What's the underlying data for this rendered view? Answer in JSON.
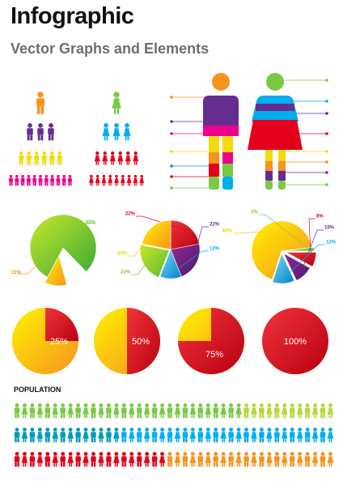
{
  "header": {
    "title": "Infographic",
    "subtitle": "Vector Graphs and Elements"
  },
  "colors": {
    "green": "#7ac943",
    "lime": "#b5d936",
    "yellow": "#f5d90a",
    "orange": "#f7931e",
    "red": "#e3001b",
    "pink": "#ec008c",
    "purple": "#662d91",
    "blue": "#00aeef",
    "teal": "#009bb8"
  },
  "chart_data": [
    {
      "type": "pie",
      "values": [
        68,
        22
      ],
      "labels": [
        "68%",
        "22%"
      ],
      "colors": [
        "#7ac943",
        "#f7d000"
      ]
    },
    {
      "type": "pie",
      "values": [
        22,
        22,
        12,
        22,
        22
      ],
      "labels": [
        "22%",
        "22%",
        "12%",
        "22%",
        "22%"
      ],
      "colors": [
        "#e3001b",
        "#662d91",
        "#00aeef",
        "#7ac943",
        "#f7d000"
      ]
    },
    {
      "type": "pie",
      "values": [
        68,
        2,
        8,
        10,
        12
      ],
      "labels": [
        "68%",
        "2%",
        "8%",
        "10%",
        "12%"
      ],
      "colors": [
        "#f7d000",
        "#7ac943",
        "#e3001b",
        "#662d91",
        "#00aeef"
      ]
    },
    {
      "type": "pie",
      "values": [
        25
      ],
      "labels": [
        "25%"
      ]
    },
    {
      "type": "pie",
      "values": [
        50
      ],
      "labels": [
        "50%"
      ]
    },
    {
      "type": "pie",
      "values": [
        75
      ],
      "labels": [
        "75%"
      ]
    },
    {
      "type": "pie",
      "values": [
        100
      ],
      "labels": [
        "100%"
      ]
    }
  ],
  "population": {
    "label": "POPULATION"
  }
}
